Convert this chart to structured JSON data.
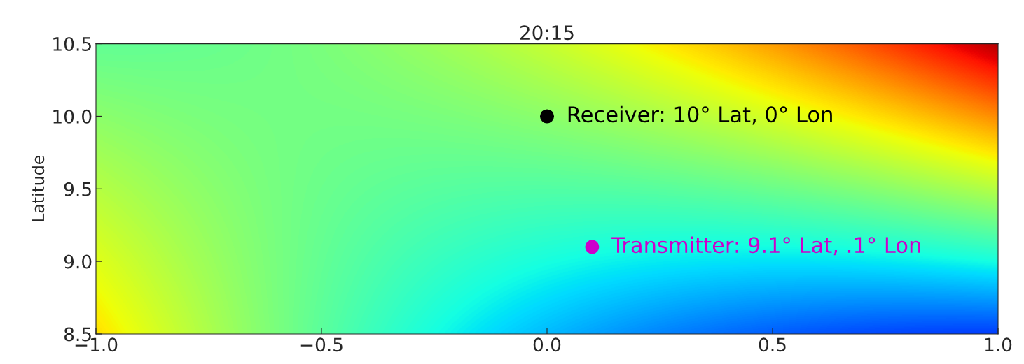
{
  "chart_data": {
    "type": "scatter",
    "title": "20:15",
    "ylabel": "Latitude",
    "series": [
      {
        "name": "Receiver: 10° Lat, 0° Lon",
        "color": "#000000",
        "x": [
          0.0
        ],
        "values": [
          10.0
        ]
      },
      {
        "name": "Transmitter: 9.1° Lat, .1° Lon",
        "color": "#cc00cc",
        "x": [
          0.1
        ],
        "values": [
          9.1
        ]
      }
    ],
    "xlim": [
      -1.0,
      1.0
    ],
    "xticks": [
      {
        "value": -1.0,
        "label": "−1.0"
      },
      {
        "value": -0.5,
        "label": "−0.5"
      },
      {
        "value": 0.0,
        "label": "0.0"
      },
      {
        "value": 0.5,
        "label": "0.5"
      },
      {
        "value": 1.0,
        "label": "1.0"
      }
    ],
    "ylim": [
      8.5,
      10.5
    ],
    "yticks": [
      {
        "value": 8.5,
        "label": "8.5"
      },
      {
        "value": 9.0,
        "label": "9.0"
      },
      {
        "value": 9.5,
        "label": "9.5"
      },
      {
        "value": 10.0,
        "label": "10.0"
      },
      {
        "value": 10.5,
        "label": "10.5"
      }
    ],
    "marker": "circle",
    "grid": false,
    "legend": false
  }
}
